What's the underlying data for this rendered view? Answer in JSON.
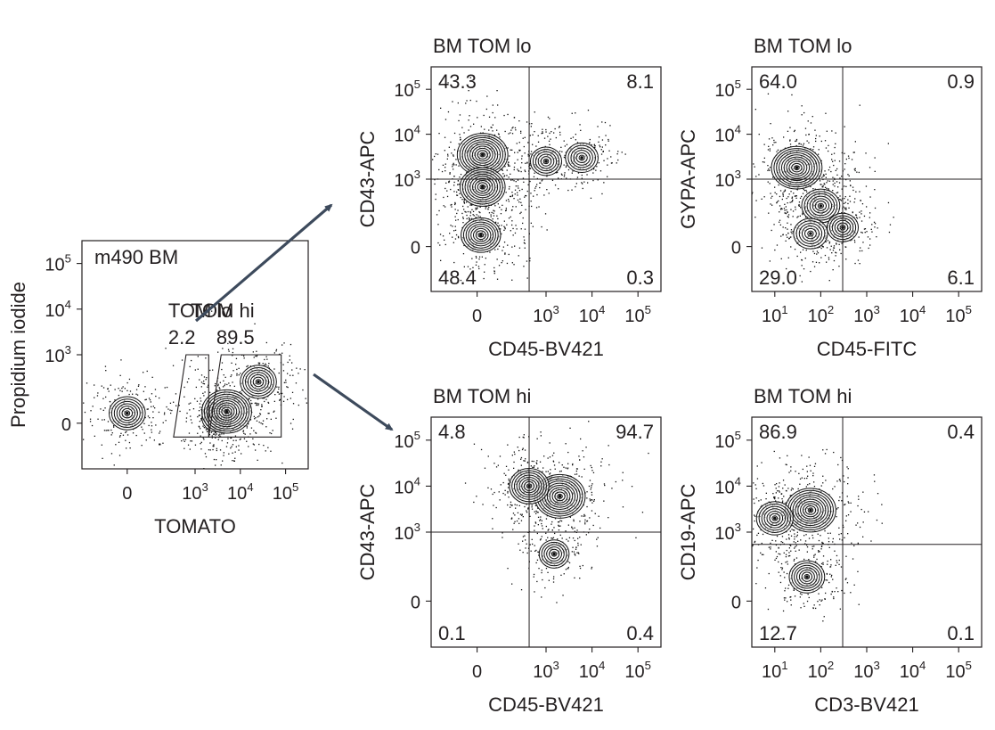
{
  "figure": {
    "arrow_color": "#3d4a5c"
  },
  "chart_data": [
    {
      "id": "source",
      "type": "scatter",
      "style": "contour",
      "title": "",
      "sample_label": "m490 BM",
      "xlabel": "TOMATO",
      "ylabel": "Propidium iodide",
      "x_ticks": [
        "0",
        "10^3",
        "10^4",
        "10^5"
      ],
      "y_ticks": [
        "0",
        "10^3",
        "10^4",
        "10^5"
      ],
      "x_scale": "biexponential",
      "y_scale": "biexponential",
      "gates": [
        {
          "name": "TOM lo",
          "percent": "2.2",
          "x_range": [
            500,
            2000
          ],
          "y_range": [
            -200,
            1000
          ]
        },
        {
          "name": "TOM hi",
          "percent": "89.5",
          "x_range": [
            2000,
            80000
          ],
          "y_range": [
            -200,
            1000
          ]
        }
      ],
      "populations": [
        {
          "x": 0,
          "y": 30,
          "intensity": 0.5
        },
        {
          "x": 3000,
          "y": 10,
          "intensity": 0.25
        },
        {
          "x": 5000,
          "y": 40,
          "intensity": 1.0
        },
        {
          "x": 25000,
          "y": 400,
          "intensity": 0.5
        }
      ]
    },
    {
      "id": "lo-cd43-cd45",
      "type": "scatter",
      "style": "contour",
      "title": "BM TOM lo",
      "xlabel": "CD45-BV421",
      "ylabel": "CD43-APC",
      "x_ticks": [
        "0",
        "10^3",
        "10^4",
        "10^5"
      ],
      "y_ticks": [
        "0",
        "10^3",
        "10^4",
        "10^5"
      ],
      "gate_x": 600,
      "gate_y": 1000,
      "quadrants": {
        "top_left": "43.3",
        "top_right": "8.1",
        "bottom_left": "48.4",
        "bottom_right": "0.3"
      },
      "populations": [
        {
          "x": 10,
          "y": 3500,
          "intensity": 1.0
        },
        {
          "x": 10,
          "y": 800,
          "intensity": 0.8
        },
        {
          "x": 5,
          "y": 40,
          "intensity": 0.6
        },
        {
          "x": 6000,
          "y": 3000,
          "intensity": 0.35
        },
        {
          "x": 1000,
          "y": 2500,
          "intensity": 0.3
        }
      ]
    },
    {
      "id": "lo-gypa-cd45",
      "type": "scatter",
      "style": "contour",
      "title": "BM TOM lo",
      "xlabel": "CD45-FITC",
      "ylabel": "GYPA-APC",
      "x_ticks": [
        "10^1",
        "10^2",
        "10^3",
        "10^4",
        "10^5"
      ],
      "y_ticks": [
        "0",
        "10^3",
        "10^4",
        "10^5"
      ],
      "gate_x": 300,
      "gate_y": 1000,
      "quadrants": {
        "top_left": "64.0",
        "top_right": "0.9",
        "bottom_left": "29.0",
        "bottom_right": "6.1"
      },
      "populations": [
        {
          "x": 30,
          "y": 1800,
          "intensity": 1.0
        },
        {
          "x": 100,
          "y": 400,
          "intensity": 0.55
        },
        {
          "x": 60,
          "y": 50,
          "intensity": 0.4
        },
        {
          "x": 300,
          "y": 100,
          "intensity": 0.3
        }
      ]
    },
    {
      "id": "hi-cd43-cd45",
      "type": "scatter",
      "style": "contour",
      "title": "BM TOM hi",
      "xlabel": "CD45-BV421",
      "ylabel": "CD43-APC",
      "x_ticks": [
        "0",
        "10^3",
        "10^4",
        "10^5"
      ],
      "y_ticks": [
        "0",
        "10^3",
        "10^4",
        "10^5"
      ],
      "gate_x": 600,
      "gate_y": 1000,
      "quadrants": {
        "top_left": "4.8",
        "top_right": "94.7",
        "bottom_left": "0.1",
        "bottom_right": "0.4"
      },
      "populations": [
        {
          "x": 2000,
          "y": 6000,
          "intensity": 1.0
        },
        {
          "x": 600,
          "y": 10000,
          "intensity": 0.6
        },
        {
          "x": 1500,
          "y": 500,
          "intensity": 0.25
        }
      ]
    },
    {
      "id": "hi-cd19-cd3",
      "type": "scatter",
      "style": "contour",
      "title": "BM TOM hi",
      "xlabel": "CD3-BV421",
      "ylabel": "CD19-APC",
      "x_ticks": [
        "10^1",
        "10^2",
        "10^3",
        "10^4",
        "10^5"
      ],
      "y_ticks": [
        "0",
        "10^3",
        "10^4",
        "10^5"
      ],
      "gate_x": 300,
      "gate_y": 700,
      "quadrants": {
        "top_left": "86.9",
        "top_right": "0.4",
        "bottom_left": "12.7",
        "bottom_right": "0.1"
      },
      "populations": [
        {
          "x": 60,
          "y": 3000,
          "intensity": 1.0
        },
        {
          "x": 10,
          "y": 2000,
          "intensity": 0.5
        },
        {
          "x": 50,
          "y": 150,
          "intensity": 0.45
        }
      ]
    }
  ]
}
